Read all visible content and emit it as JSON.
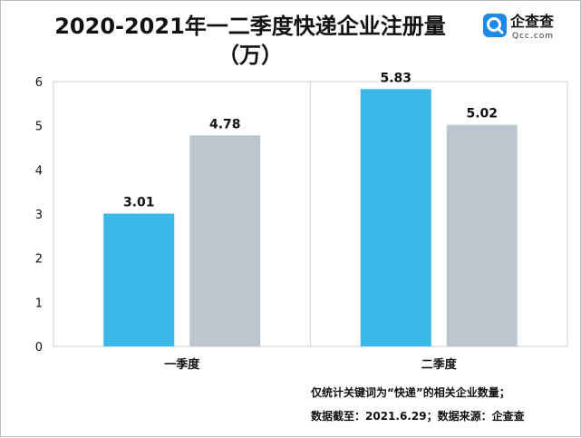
{
  "title": "2020-2021年一二季度快递企业注册量（万）",
  "title_line1": "2020-2021年一二季度快递企业注册量",
  "title_line2": "（万）",
  "logo": {
    "name": "企查查",
    "domain": "Qcc.com",
    "icon": "magnifier-q-logo-icon",
    "color": "#1e88e5"
  },
  "footnotes": [
    "仅统计关键词为“快递”的相关企业数量；",
    "数据截至：2021.6.29；数据来源：企查查"
  ],
  "chart_data": {
    "type": "bar",
    "categories": [
      "一季度",
      "二季度"
    ],
    "series": [
      {
        "values": [
          3.01,
          5.83
        ],
        "color": "#3bb8e8"
      },
      {
        "values": [
          4.78,
          5.02
        ],
        "color": "#bdc5cf"
      }
    ],
    "ylim": [
      0,
      6
    ],
    "yticks": [
      0,
      1,
      2,
      3,
      4,
      5,
      6
    ],
    "grid": false,
    "data_labels": true
  }
}
